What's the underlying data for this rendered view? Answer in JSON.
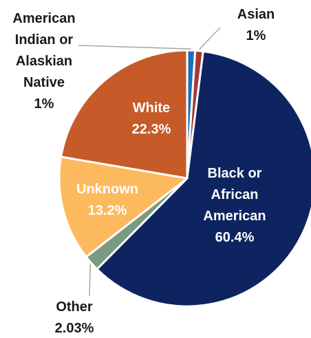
{
  "chart_data": {
    "type": "pie",
    "title": "",
    "unit": "%",
    "slices": [
      {
        "name": "American Indian or Alaskian Native",
        "value": 1,
        "color": "#1f6fb5",
        "label_lines": [
          "American",
          "Indian or",
          "Alaskian",
          "Native"
        ],
        "value_label": "1%",
        "label_placement": "outside-left"
      },
      {
        "name": "Asian",
        "value": 1,
        "color": "#a33a3a",
        "label_lines": [
          "Asian"
        ],
        "value_label": "1%",
        "label_placement": "outside-right"
      },
      {
        "name": "Black or African American",
        "value": 60.4,
        "color": "#0d2460",
        "label_lines": [
          "Black or",
          "African",
          "American"
        ],
        "value_label": "60.4%",
        "label_placement": "inside"
      },
      {
        "name": "Other",
        "value": 2.03,
        "color": "#7a9a82",
        "label_lines": [
          "Other"
        ],
        "value_label": "2.03%",
        "label_placement": "outside-bottom"
      },
      {
        "name": "Unknown",
        "value": 13.2,
        "color": "#fcb95e",
        "label_lines": [
          "Unknown"
        ],
        "value_label": "13.2%",
        "label_placement": "inside"
      },
      {
        "name": "White",
        "value": 22.3,
        "color": "#c65b29",
        "label_lines": [
          "White"
        ],
        "value_label": "22.3%",
        "label_placement": "inside"
      }
    ]
  }
}
